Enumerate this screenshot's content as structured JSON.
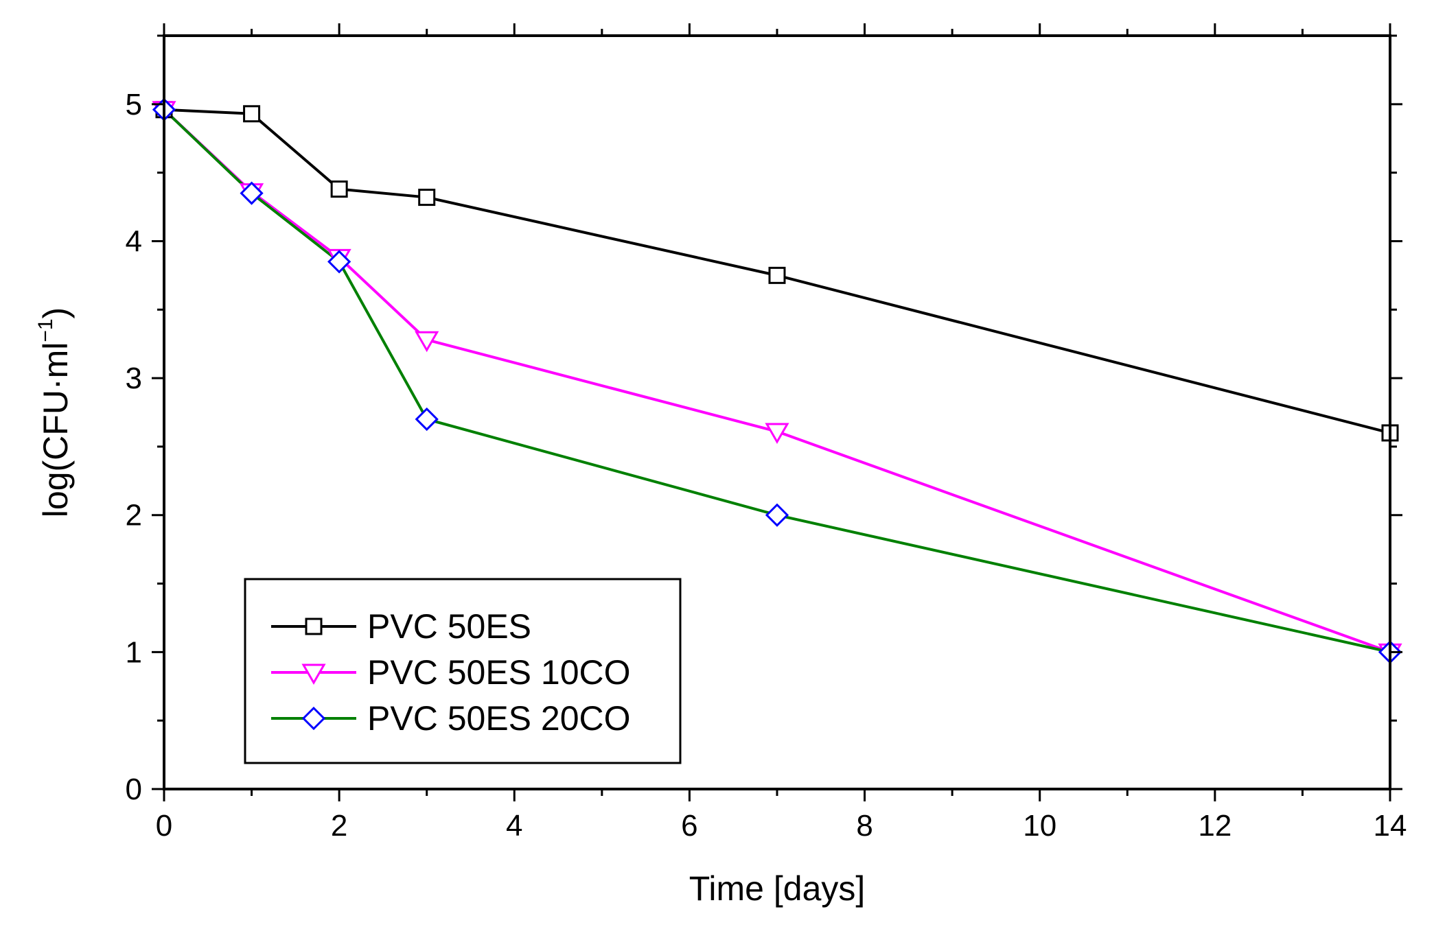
{
  "chart_data": {
    "type": "line",
    "title": "",
    "xlabel": "Time [days]",
    "ylabel_main": "log(CFU·ml",
    "ylabel_sup": "−1",
    "ylabel_close": ")",
    "xlim": [
      0,
      14
    ],
    "ylim": [
      0,
      5.5
    ],
    "x_ticks": [
      0,
      2,
      4,
      6,
      8,
      10,
      12,
      14
    ],
    "x_tick_labels": [
      "0",
      "2",
      "4",
      "6",
      "8",
      "10",
      "12",
      "14"
    ],
    "y_ticks": [
      0,
      1,
      2,
      3,
      4,
      5
    ],
    "y_tick_labels": [
      "0",
      "1",
      "2",
      "3",
      "4",
      "5"
    ],
    "grid": false,
    "legend_position": "bottom-left",
    "series": [
      {
        "name": "PVC 50ES",
        "x": [
          0,
          1,
          2,
          3,
          7,
          14
        ],
        "values": [
          4.96,
          4.93,
          4.38,
          4.32,
          3.75,
          2.6
        ],
        "line_color": "#000000",
        "marker": "square",
        "marker_color": "#000000"
      },
      {
        "name": "PVC 50ES 10CO",
        "x": [
          0,
          1,
          2,
          3,
          7,
          14
        ],
        "values": [
          4.96,
          4.36,
          3.88,
          3.28,
          2.61,
          1.0
        ],
        "line_color": "#ff00ff",
        "marker": "triangle-down",
        "marker_color": "#ff00ff"
      },
      {
        "name": "PVC 50ES 20CO",
        "x": [
          0,
          1,
          2,
          3,
          7,
          14
        ],
        "values": [
          4.96,
          4.35,
          3.85,
          2.7,
          2.0,
          1.0
        ],
        "line_color": "#008000",
        "marker": "diamond",
        "marker_color": "#0000ff"
      }
    ]
  }
}
